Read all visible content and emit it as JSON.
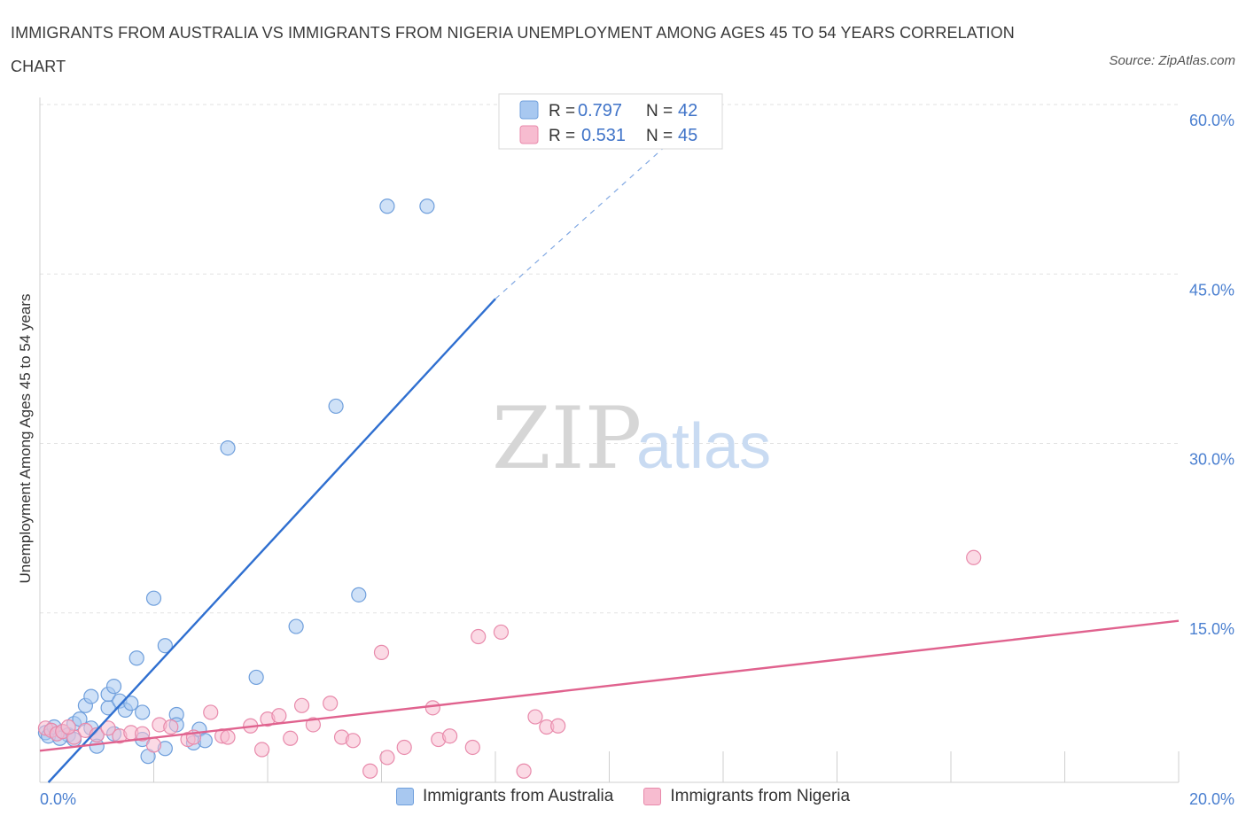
{
  "title": "IMMIGRANTS FROM AUSTRALIA VS IMMIGRANTS FROM NIGERIA UNEMPLOYMENT AMONG AGES 45 TO 54 YEARS CORRELATION CHART",
  "source": "Source: ZipAtlas.com",
  "watermark": {
    "zip": "ZIP",
    "atlas": "atlas"
  },
  "legend": {
    "r_label": "R =",
    "n_label": "N =",
    "rows": [
      {
        "r": "0.797",
        "n": "42"
      },
      {
        "r": "0.531",
        "n": "45"
      }
    ]
  },
  "colors": {
    "australia_fill": "#a8c8f0",
    "australia_stroke": "#6f9fdc",
    "australia_line": "#2f6fd0",
    "nigeria_fill": "#f7bcd0",
    "nigeria_stroke": "#e88aab",
    "nigeria_line": "#e0628e",
    "tick_text": "#4a7fd0"
  },
  "chart_data": {
    "type": "scatter",
    "ylabel": "Unemployment Among Ages 45 to 54 years",
    "xlim": [
      0,
      20
    ],
    "ylim": [
      0,
      60
    ],
    "x_tick_labels": [
      "0.0%",
      "20.0%"
    ],
    "y_ticks": [
      15,
      30,
      45,
      60
    ],
    "y_tick_labels": [
      "15.0%",
      "30.0%",
      "45.0%",
      "60.0%"
    ],
    "grid": true,
    "legend_position": "top-center",
    "series": [
      {
        "name": "Immigrants from Australia",
        "points": [
          [
            0.1,
            4.4
          ],
          [
            0.2,
            4.6
          ],
          [
            0.3,
            4.3
          ],
          [
            0.4,
            4.5
          ],
          [
            0.5,
            4.2
          ],
          [
            0.6,
            3.8
          ],
          [
            0.6,
            5.2
          ],
          [
            0.7,
            5.6
          ],
          [
            0.8,
            6.8
          ],
          [
            0.9,
            4.8
          ],
          [
            0.9,
            7.6
          ],
          [
            1.0,
            4.2
          ],
          [
            1.0,
            3.2
          ],
          [
            1.2,
            6.6
          ],
          [
            1.2,
            7.8
          ],
          [
            1.3,
            4.3
          ],
          [
            1.3,
            8.5
          ],
          [
            1.4,
            7.2
          ],
          [
            1.5,
            6.4
          ],
          [
            1.6,
            7.0
          ],
          [
            1.7,
            11.0
          ],
          [
            1.8,
            3.8
          ],
          [
            1.8,
            6.2
          ],
          [
            1.9,
            2.3
          ],
          [
            2.0,
            16.3
          ],
          [
            2.2,
            3.0
          ],
          [
            2.2,
            12.1
          ],
          [
            2.4,
            6.0
          ],
          [
            2.4,
            5.1
          ],
          [
            2.7,
            3.5
          ],
          [
            2.8,
            4.7
          ],
          [
            2.9,
            3.7
          ],
          [
            3.3,
            29.6
          ],
          [
            3.8,
            9.3
          ],
          [
            4.5,
            13.8
          ],
          [
            5.2,
            33.3
          ],
          [
            5.6,
            16.6
          ],
          [
            6.1,
            51.0
          ],
          [
            6.8,
            51.0
          ],
          [
            0.15,
            4.1
          ],
          [
            0.25,
            4.9
          ],
          [
            0.35,
            3.9
          ]
        ],
        "trend": {
          "x0": 0.15,
          "y0": 0.0,
          "x1": 8.0,
          "y1": 42.8,
          "dash_x1": 11.8,
          "dash_y1": 60.0
        }
      },
      {
        "name": "Immigrants from Nigeria",
        "points": [
          [
            0.1,
            4.8
          ],
          [
            0.2,
            4.6
          ],
          [
            0.3,
            4.3
          ],
          [
            0.4,
            4.5
          ],
          [
            0.6,
            4.0
          ],
          [
            0.8,
            4.6
          ],
          [
            1.0,
            4.2
          ],
          [
            1.2,
            4.8
          ],
          [
            1.4,
            4.1
          ],
          [
            1.6,
            4.4
          ],
          [
            1.8,
            4.3
          ],
          [
            2.0,
            3.3
          ],
          [
            2.1,
            5.1
          ],
          [
            2.3,
            4.9
          ],
          [
            2.6,
            3.8
          ],
          [
            2.7,
            4.0
          ],
          [
            3.0,
            6.2
          ],
          [
            3.2,
            4.1
          ],
          [
            3.3,
            4.0
          ],
          [
            3.7,
            5.0
          ],
          [
            3.9,
            2.9
          ],
          [
            4.0,
            5.6
          ],
          [
            4.2,
            5.9
          ],
          [
            4.4,
            3.9
          ],
          [
            4.6,
            6.8
          ],
          [
            4.8,
            5.1
          ],
          [
            5.1,
            7.0
          ],
          [
            5.3,
            4.0
          ],
          [
            5.5,
            3.7
          ],
          [
            5.8,
            1.0
          ],
          [
            6.0,
            11.5
          ],
          [
            6.1,
            2.2
          ],
          [
            6.4,
            3.1
          ],
          [
            6.9,
            6.6
          ],
          [
            7.0,
            3.8
          ],
          [
            7.2,
            4.1
          ],
          [
            7.6,
            3.1
          ],
          [
            7.7,
            12.9
          ],
          [
            8.1,
            13.3
          ],
          [
            8.5,
            1.0
          ],
          [
            8.7,
            5.8
          ],
          [
            8.9,
            4.9
          ],
          [
            9.1,
            5.0
          ],
          [
            16.4,
            19.9
          ],
          [
            0.5,
            4.9
          ]
        ],
        "trend": {
          "x0": 0.0,
          "y0": 2.8,
          "x1": 20.0,
          "y1": 14.3
        }
      }
    ]
  }
}
